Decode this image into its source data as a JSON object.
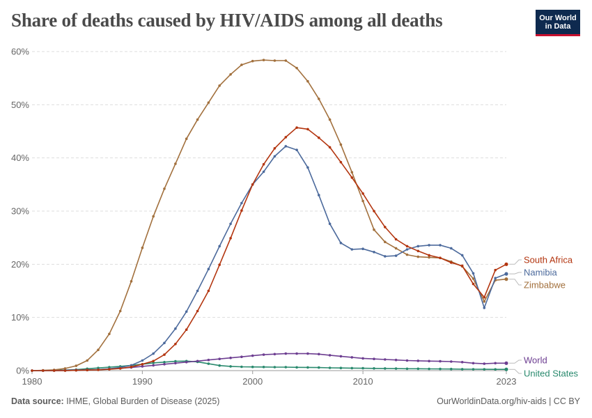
{
  "header": {
    "title": "Share of deaths caused by HIV/AIDS among all deaths",
    "logo_line1": "Our World",
    "logo_line2": "in Data"
  },
  "footer": {
    "source_label": "Data source:",
    "source_text": "IHME, Global Burden of Disease (2025)",
    "credit": "OurWorldinData.org/hiv-aids | CC BY"
  },
  "chart_data": {
    "type": "line",
    "title": "Share of deaths caused by HIV/AIDS among all deaths",
    "xlim": [
      1980,
      2023
    ],
    "ylim": [
      0,
      60
    ],
    "y_unit": "%",
    "grid": "horizontal dashed",
    "legend": "right, labels at line ends",
    "x_ticks": [
      "1980",
      "1990",
      "2000",
      "2010",
      "2023"
    ],
    "y_ticks": [
      "0%",
      "10%",
      "20%",
      "30%",
      "40%",
      "50%",
      "60%"
    ],
    "x": [
      1980,
      1981,
      1982,
      1983,
      1984,
      1985,
      1986,
      1987,
      1988,
      1989,
      1990,
      1991,
      1992,
      1993,
      1994,
      1995,
      1996,
      1997,
      1998,
      1999,
      2000,
      2001,
      2002,
      2003,
      2004,
      2005,
      2006,
      2007,
      2008,
      2009,
      2010,
      2011,
      2012,
      2013,
      2014,
      2015,
      2016,
      2017,
      2018,
      2019,
      2020,
      2021,
      2022,
      2023
    ],
    "series": [
      {
        "name": "South Africa",
        "color": "#b3350f",
        "values": [
          0.0,
          0.0,
          0.0,
          0.0,
          0.05,
          0.1,
          0.15,
          0.25,
          0.4,
          0.7,
          1.2,
          1.8,
          3.0,
          5.0,
          7.7,
          11.2,
          15.0,
          19.9,
          24.9,
          30.1,
          35.0,
          38.8,
          41.8,
          43.9,
          45.7,
          45.4,
          43.8,
          42.0,
          39.2,
          36.3,
          33.3,
          30.0,
          27.0,
          24.7,
          23.4,
          22.5,
          21.7,
          21.2,
          20.3,
          19.7,
          16.3,
          13.8,
          18.9,
          20.0
        ]
      },
      {
        "name": "Namibia",
        "color": "#4c6a9c",
        "values": [
          0.0,
          0.0,
          0.0,
          0.0,
          0.05,
          0.1,
          0.2,
          0.35,
          0.6,
          1.0,
          1.9,
          3.2,
          5.2,
          7.9,
          11.1,
          15.0,
          19.1,
          23.4,
          27.6,
          31.5,
          35.0,
          37.4,
          40.3,
          42.2,
          41.5,
          38.2,
          33.0,
          27.6,
          24.0,
          22.8,
          22.9,
          22.3,
          21.5,
          21.6,
          22.8,
          23.4,
          23.6,
          23.6,
          23.0,
          21.7,
          18.3,
          11.8,
          17.4,
          18.2
        ]
      },
      {
        "name": "Zimbabwe",
        "color": "#a2703d",
        "values": [
          0.0,
          0.05,
          0.15,
          0.4,
          0.9,
          1.9,
          3.9,
          6.9,
          11.2,
          16.8,
          23.1,
          29.0,
          34.2,
          38.9,
          43.6,
          47.2,
          50.4,
          53.6,
          55.7,
          57.5,
          58.2,
          58.4,
          58.3,
          58.3,
          56.9,
          54.4,
          51.1,
          47.2,
          42.5,
          37.3,
          31.9,
          26.5,
          24.2,
          23.0,
          21.8,
          21.4,
          21.3,
          21.2,
          20.5,
          19.6,
          17.3,
          13.0,
          17.0,
          17.2
        ]
      },
      {
        "name": "World",
        "color": "#6d3e91",
        "values": [
          0.0,
          0.0,
          0.0,
          0.05,
          0.1,
          0.15,
          0.2,
          0.3,
          0.45,
          0.6,
          0.8,
          1.0,
          1.2,
          1.4,
          1.6,
          1.8,
          2.0,
          2.2,
          2.4,
          2.6,
          2.8,
          3.0,
          3.1,
          3.2,
          3.2,
          3.2,
          3.1,
          2.9,
          2.7,
          2.5,
          2.3,
          2.2,
          2.1,
          2.0,
          1.9,
          1.85,
          1.8,
          1.75,
          1.7,
          1.6,
          1.4,
          1.3,
          1.4,
          1.4
        ]
      },
      {
        "name": "United States",
        "color": "#2a8a6e",
        "values": [
          0.0,
          0.0,
          0.05,
          0.1,
          0.2,
          0.35,
          0.5,
          0.65,
          0.8,
          1.0,
          1.2,
          1.45,
          1.6,
          1.75,
          1.8,
          1.65,
          1.3,
          0.95,
          0.8,
          0.72,
          0.7,
          0.68,
          0.66,
          0.65,
          0.62,
          0.6,
          0.57,
          0.53,
          0.5,
          0.47,
          0.44,
          0.42,
          0.4,
          0.38,
          0.36,
          0.35,
          0.33,
          0.32,
          0.3,
          0.28,
          0.26,
          0.25,
          0.24,
          0.23
        ]
      }
    ]
  }
}
